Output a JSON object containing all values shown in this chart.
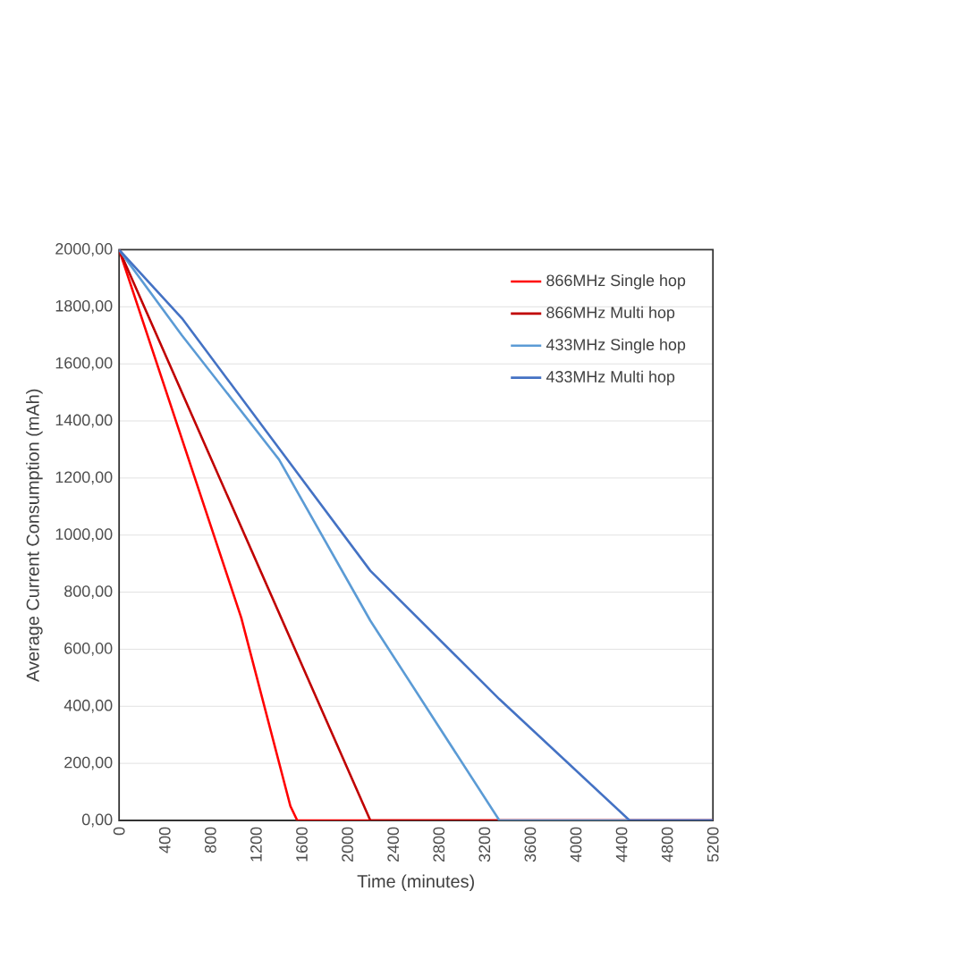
{
  "chart_data": {
    "type": "line",
    "xlabel": "Time (minutes)",
    "ylabel": "Average Current Consumption (mAh)",
    "xlim": [
      0,
      5200
    ],
    "ylim": [
      0,
      2000
    ],
    "xticks": [
      0,
      400,
      800,
      1200,
      1600,
      2000,
      2400,
      2800,
      3200,
      3600,
      4000,
      4400,
      4800,
      5200
    ],
    "yticks": [
      {
        "value": 0,
        "label": "0,00"
      },
      {
        "value": 200,
        "label": "200,00"
      },
      {
        "value": 400,
        "label": "400,00"
      },
      {
        "value": 600,
        "label": "600,00"
      },
      {
        "value": 800,
        "label": "800,00"
      },
      {
        "value": 1000,
        "label": "1000,00"
      },
      {
        "value": 1200,
        "label": "1200,00"
      },
      {
        "value": 1400,
        "label": "1400,00"
      },
      {
        "value": 1600,
        "label": "1600,00"
      },
      {
        "value": 1800,
        "label": "1800,00"
      },
      {
        "value": 2000,
        "label": "2000,00"
      }
    ],
    "grid": "y",
    "legend": "top right",
    "marker": "none",
    "line_style": "solid",
    "series": [
      {
        "name": "866MHz Single hop",
        "color": "#ff0000",
        "x": [
          0,
          1070,
          1500,
          1560,
          5200
        ],
        "values": [
          2000,
          710,
          50,
          0,
          0
        ]
      },
      {
        "name": "866MHz Multi hop",
        "color": "#c00000",
        "x": [
          0,
          2200,
          5200
        ],
        "values": [
          2000,
          0,
          0
        ]
      },
      {
        "name": "433MHz Single hop",
        "color": "#5b9bd5",
        "x": [
          0,
          550,
          1400,
          2200,
          3330,
          5200
        ],
        "values": [
          2000,
          1700,
          1265,
          700,
          0,
          0
        ]
      },
      {
        "name": "433MHz Multi hop",
        "color": "#4472c4",
        "x": [
          0,
          550,
          2200,
          3330,
          4470,
          5200
        ],
        "values": [
          2000,
          1760,
          875,
          425,
          0,
          0
        ]
      }
    ]
  }
}
